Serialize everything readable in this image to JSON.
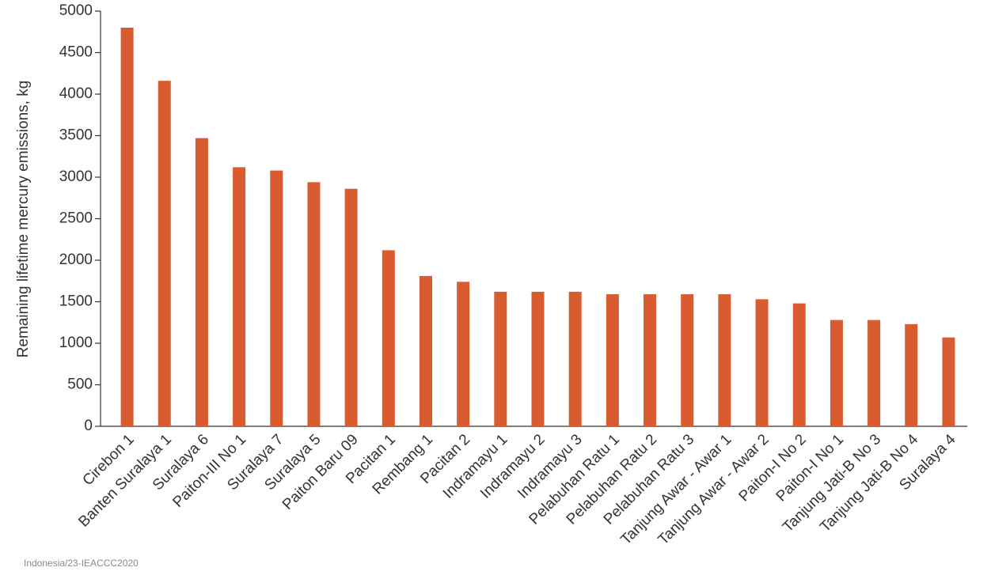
{
  "chart_data": {
    "type": "bar",
    "ylabel": "Remaining lifetime mercury emissions, kg",
    "categories": [
      "Cirebon 1",
      "Banten Suralaya 1",
      "Suralaya 6",
      "Paiton-III No 1",
      "Suralaya 7",
      "Suralaya 5",
      "Paiton Baru 09",
      "Pacitan 1",
      "Rembang 1",
      "Pacitan 2",
      "Indramayu 1",
      "Indramayu 2",
      "Indramayu 3",
      "Pelabuhan Ratu 1",
      "Pelabuhan Ratu 2",
      "Pelabuhan Ratu 3",
      "Tanjung Awar - Awar 1",
      "Tanjung Awar - Awar 2",
      "Paiton-I No 2",
      "Paiton-I No 1",
      "Tanjung Jati-B No 3",
      "Tanjung Jati-B No 4",
      "Suralaya 4"
    ],
    "values": [
      4800,
      4160,
      3470,
      3120,
      3080,
      2940,
      2860,
      2120,
      1810,
      1740,
      1620,
      1620,
      1620,
      1590,
      1590,
      1590,
      1590,
      1530,
      1480,
      1280,
      1280,
      1230,
      1070
    ],
    "color": "#d95b30",
    "ylim": [
      0,
      5000
    ],
    "yticks": [
      0,
      500,
      1000,
      1500,
      2000,
      2500,
      3000,
      3500,
      4000,
      4500,
      5000
    ],
    "grid": false
  },
  "footer": "Indonesia/23-IEACCC2020"
}
